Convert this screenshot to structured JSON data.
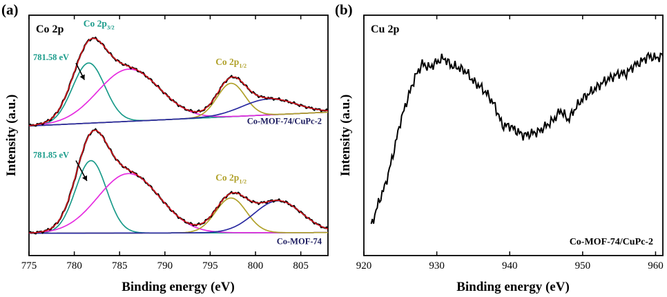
{
  "colors": {
    "envelope": "#e8141c",
    "co_main": "#1a9b8a",
    "satellite": "#e62ce0",
    "co_half": "#b0a12a",
    "high_peak": "#2a2aa0",
    "background": "#2a2aa0",
    "raw": "#000000",
    "cu_line": "#000000"
  },
  "chart_data": [
    {
      "id": "a",
      "type": "line",
      "panel_label": "(a)",
      "corner_label": "Co 2p",
      "xlabel": "Binding energy (eV)",
      "ylabel": "Intensity (a.u.)",
      "xlim": [
        775,
        808
      ],
      "xticks": [
        775,
        780,
        785,
        790,
        795,
        800,
        805
      ],
      "yticks_shown": false,
      "y_units": "arbitrary (stacked, upper spectrum offset 1.5)",
      "spectra": [
        {
          "sample_label": "Co-MOF-74/CuPc-2",
          "offset": 1.5,
          "background": {
            "x": [
              775,
              808
            ],
            "y": [
              0.03,
              0.22
            ]
          },
          "components": [
            {
              "role": "main",
              "center": 781.58,
              "height": 0.83,
              "fwhm": 4.2
            },
            {
              "role": "satellite",
              "center": 786.0,
              "height": 0.72,
              "fwhm": 8.0
            },
            {
              "role": "half",
              "center": 797.3,
              "height": 0.46,
              "fwhm": 3.6
            },
            {
              "role": "high",
              "center": 801.5,
              "height": 0.22,
              "fwhm": 7.0
            }
          ],
          "annotations": [
            {
              "text": "781.58 eV",
              "kind": "peak_position",
              "x": 781.58
            },
            {
              "text": "Co 2p",
              "sub": "3/2",
              "kind": "peak_name",
              "x": 781.8
            },
            {
              "text": "Co 2p",
              "sub": "1/2",
              "kind": "peak_name",
              "x": 797.3
            }
          ]
        },
        {
          "sample_label": "Co-MOF-74",
          "offset": 0,
          "background": {
            "x": [
              775,
              808
            ],
            "y": [
              0.05,
              0.06
            ]
          },
          "components": [
            {
              "role": "main",
              "center": 781.85,
              "height": 1.0,
              "fwhm": 4.0
            },
            {
              "role": "satellite",
              "center": 786.0,
              "height": 0.82,
              "fwhm": 8.0
            },
            {
              "role": "half",
              "center": 797.3,
              "height": 0.48,
              "fwhm": 4.0
            },
            {
              "role": "high",
              "center": 802.5,
              "height": 0.44,
              "fwhm": 6.2
            }
          ],
          "annotations": [
            {
              "text": "781.85 eV",
              "kind": "peak_position",
              "x": 781.85
            },
            {
              "text": "Co 2p",
              "sub": "1/2",
              "kind": "peak_name",
              "x": 797.3
            }
          ]
        }
      ]
    },
    {
      "id": "b",
      "type": "line",
      "panel_label": "(b)",
      "corner_label": "Cu 2p",
      "xlabel": "Binding energy (eV)",
      "ylabel": "Intensity (a.u.)",
      "xlim": [
        920,
        961
      ],
      "xticks": [
        920,
        930,
        940,
        950,
        960
      ],
      "yticks_shown": false,
      "y_units": "arbitrary",
      "sample_label": "Co-MOF-74/CuPc-2",
      "series": [
        {
          "x": [
            921,
            922,
            923,
            924,
            925,
            926,
            927,
            928,
            929,
            930,
            931,
            932,
            933,
            934,
            935,
            936,
            937,
            938,
            939,
            940,
            941,
            942,
            943,
            944,
            945,
            946,
            947,
            948,
            949,
            950,
            951,
            952,
            953,
            954,
            955,
            956,
            957,
            958,
            959,
            960,
            961
          ],
          "y": [
            0.08,
            0.2,
            0.3,
            0.45,
            0.62,
            0.74,
            0.85,
            0.92,
            0.9,
            0.93,
            0.95,
            0.91,
            0.9,
            0.88,
            0.83,
            0.8,
            0.76,
            0.7,
            0.6,
            0.6,
            0.57,
            0.55,
            0.56,
            0.57,
            0.6,
            0.63,
            0.68,
            0.63,
            0.69,
            0.74,
            0.77,
            0.8,
            0.83,
            0.85,
            0.87,
            0.87,
            0.91,
            0.93,
            0.96,
            0.95,
            0.96
          ]
        }
      ]
    }
  ]
}
